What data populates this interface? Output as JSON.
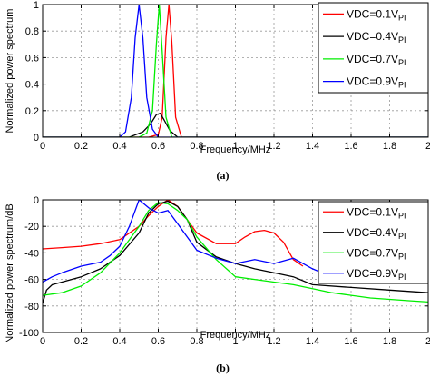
{
  "chart_data": [
    {
      "type": "line",
      "panel_label": "(a)",
      "xlabel": "Frequency/MHz",
      "ylabel": "Normalized power spectrum",
      "xlim": [
        0,
        2
      ],
      "ylim": [
        0,
        1
      ],
      "xticks": [
        0,
        0.2,
        0.4,
        0.6,
        0.8,
        1,
        1.2,
        1.4,
        1.6,
        1.8,
        2
      ],
      "yticks": [
        0,
        0.2,
        0.4,
        0.6,
        0.8,
        1
      ],
      "xtick_labels": [
        "0",
        "0.2",
        "0.4",
        "0.6",
        "0.8",
        "1",
        "1.2",
        "1.4",
        "1.6",
        "1.8",
        "2"
      ],
      "ytick_labels": [
        "0",
        "0.2",
        "0.4",
        "0.6",
        "0.8",
        "1"
      ],
      "grid": true,
      "legend_position": "top-right",
      "series": [
        {
          "name": "VDC=0.1V",
          "name_sub": "PI",
          "color": "#ff0000",
          "x": [
            0,
            0.55,
            0.6,
            0.62,
            0.64,
            0.655,
            0.67,
            0.69,
            0.72,
            2
          ],
          "y": [
            0,
            0,
            0.02,
            0.15,
            0.75,
            1.0,
            0.72,
            0.15,
            0,
            0
          ]
        },
        {
          "name": "VDC=0.4V",
          "name_sub": "PI",
          "color": "#000000",
          "x": [
            0,
            0.45,
            0.52,
            0.56,
            0.59,
            0.61,
            0.63,
            0.66,
            0.7,
            2
          ],
          "y": [
            0,
            0,
            0.04,
            0.1,
            0.17,
            0.18,
            0.13,
            0.05,
            0,
            0
          ]
        },
        {
          "name": "VDC=0.7V",
          "name_sub": "PI",
          "color": "#00ee00",
          "x": [
            0,
            0.5,
            0.54,
            0.57,
            0.59,
            0.605,
            0.62,
            0.64,
            0.67,
            2
          ],
          "y": [
            0,
            0,
            0.03,
            0.2,
            0.7,
            1.0,
            0.65,
            0.15,
            0,
            0
          ]
        },
        {
          "name": "VDC=0.9V",
          "name_sub": "PI",
          "color": "#0000ff",
          "x": [
            0,
            0.4,
            0.43,
            0.46,
            0.48,
            0.5,
            0.52,
            0.54,
            0.57,
            0.6,
            2
          ],
          "y": [
            0,
            0,
            0.04,
            0.3,
            0.75,
            1.0,
            0.75,
            0.3,
            0.06,
            0,
            0
          ]
        }
      ]
    },
    {
      "type": "line",
      "panel_label": "(b)",
      "xlabel": "Frequency/MHz",
      "ylabel": "Normalized power spectrum/dB",
      "xlim": [
        0,
        2
      ],
      "ylim": [
        -100,
        0
      ],
      "xticks": [
        0,
        0.2,
        0.4,
        0.6,
        0.8,
        1,
        1.2,
        1.4,
        1.6,
        1.8,
        2
      ],
      "yticks": [
        -100,
        -80,
        -60,
        -40,
        -20,
        0
      ],
      "xtick_labels": [
        "0",
        "0.2",
        "0.4",
        "0.6",
        "0.8",
        "1",
        "1.2",
        "1.4",
        "1.6",
        "1.8",
        "2"
      ],
      "ytick_labels": [
        "-100",
        "-80",
        "-60",
        "-40",
        "-20",
        "0"
      ],
      "grid": true,
      "legend_position": "top-right",
      "series": [
        {
          "name": "VDC=0.1V",
          "name_sub": "PI",
          "color": "#ff0000",
          "x": [
            0,
            0.1,
            0.2,
            0.3,
            0.4,
            0.5,
            0.55,
            0.6,
            0.65,
            0.7,
            0.75,
            0.8,
            0.9,
            1.0,
            1.05,
            1.1,
            1.15,
            1.2,
            1.25,
            1.3,
            1.35
          ],
          "y": [
            -37,
            -36,
            -35,
            -33,
            -30,
            -20,
            -12,
            -5,
            0,
            -5,
            -15,
            -25,
            -33,
            -33,
            -28,
            -24,
            -23,
            -25,
            -32,
            -45,
            -50
          ]
        },
        {
          "name": "VDC=0.4V",
          "name_sub": "PI",
          "color": "#000000",
          "x": [
            0,
            0.02,
            0.05,
            0.1,
            0.2,
            0.3,
            0.4,
            0.5,
            0.55,
            0.6,
            0.65,
            0.7,
            0.75,
            0.8,
            0.9,
            1.0,
            1.1,
            1.2,
            1.3,
            1.4,
            1.6,
            1.8,
            2.0
          ],
          "y": [
            -78,
            -68,
            -64,
            -62,
            -58,
            -52,
            -42,
            -25,
            -10,
            -3,
            -1,
            -5,
            -15,
            -32,
            -43,
            -48,
            -52,
            -55,
            -58,
            -64,
            -66,
            -68,
            -70
          ]
        },
        {
          "name": "VDC=0.7V",
          "name_sub": "PI",
          "color": "#00ee00",
          "x": [
            0,
            0.1,
            0.2,
            0.3,
            0.4,
            0.5,
            0.55,
            0.6,
            0.65,
            0.7,
            0.75,
            0.8,
            0.9,
            1.0,
            1.1,
            1.2,
            1.3,
            1.4,
            1.5,
            1.6,
            1.7,
            1.8,
            1.9,
            2.0
          ],
          "y": [
            -72,
            -70,
            -65,
            -55,
            -40,
            -20,
            -8,
            -2,
            -3,
            -8,
            -15,
            -28,
            -45,
            -58,
            -60,
            -62,
            -64,
            -67,
            -70,
            -72,
            -74,
            -75,
            -76,
            -77
          ]
        },
        {
          "name": "VDC=0.9V",
          "name_sub": "PI",
          "color": "#0000ff",
          "x": [
            0,
            0.05,
            0.1,
            0.2,
            0.3,
            0.35,
            0.4,
            0.45,
            0.5,
            0.55,
            0.6,
            0.65,
            0.7,
            0.8,
            0.9,
            1.0,
            1.1,
            1.2,
            1.3,
            1.4,
            1.45,
            1.5
          ],
          "y": [
            -62,
            -58,
            -55,
            -50,
            -47,
            -42,
            -35,
            -20,
            0,
            -6,
            -10,
            -8,
            -18,
            -38,
            -44,
            -48,
            -45,
            -48,
            -44,
            -52,
            -55,
            -60
          ]
        }
      ]
    }
  ]
}
